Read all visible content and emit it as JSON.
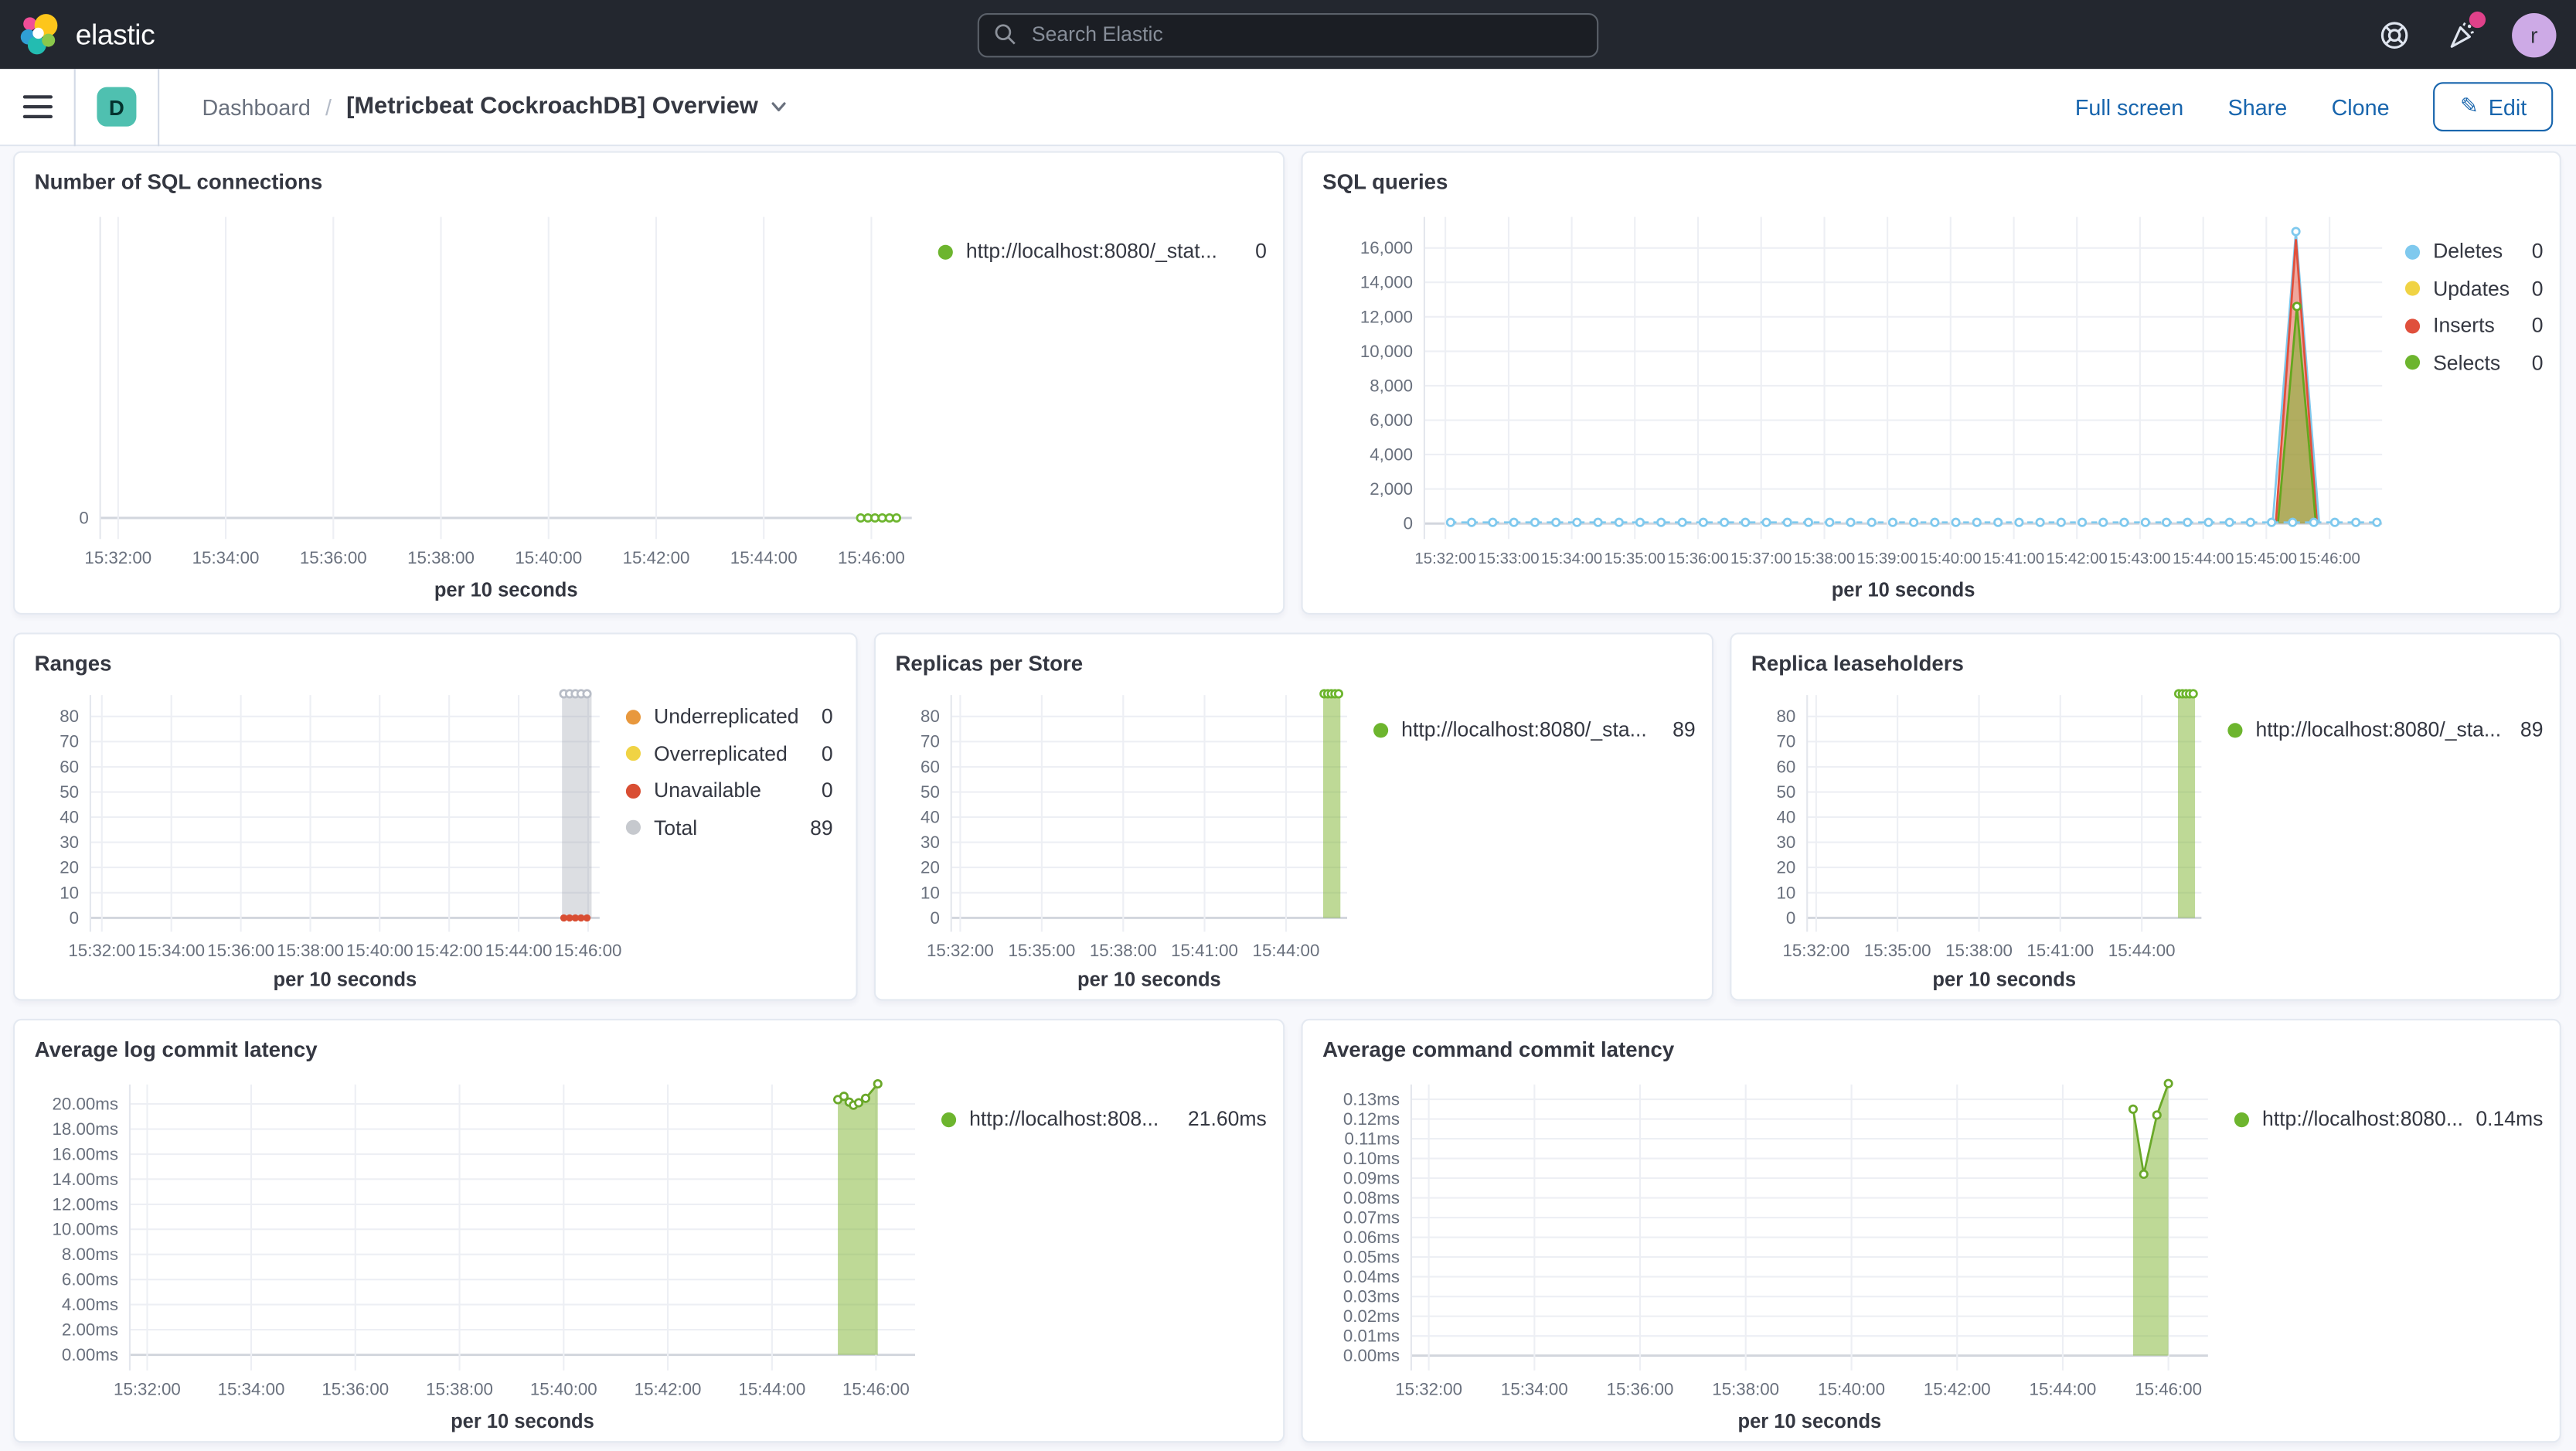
{
  "app": {
    "brand": "elastic"
  },
  "top_bar": {
    "search_placeholder": "Search Elastic",
    "avatar_initial": "r",
    "icons": [
      "help-icon",
      "newsfeed-icon",
      "user-avatar"
    ]
  },
  "toolbar": {
    "space_initial": "D",
    "breadcrumb": "Dashboard",
    "separator": "/",
    "title": "[Metricbeat CockroachDB] Overview",
    "full_screen": "Full screen",
    "share": "Share",
    "clone": "Clone",
    "edit": "Edit"
  },
  "colors": {
    "green": "#6db52e",
    "blue": "#7fc9ee",
    "yellow": "#f0d344",
    "red": "#e0503c",
    "orange": "#e8983d",
    "gray": "#c6c9ce",
    "link_blue": "#1865ad",
    "badge_teal": "#4fc0b0",
    "notification_pink": "#e0418a"
  },
  "panels": [
    {
      "title": "Number of SQL connections",
      "legend": [
        {
          "label": "http://localhost:8080/_stat...",
          "value": "0",
          "color": "#6db52e"
        }
      ]
    },
    {
      "title": "SQL queries",
      "legend": [
        {
          "label": "Deletes",
          "value": "0",
          "color": "#7fc9ee"
        },
        {
          "label": "Updates",
          "value": "0",
          "color": "#f0d344"
        },
        {
          "label": "Inserts",
          "value": "0",
          "color": "#e0503c"
        },
        {
          "label": "Selects",
          "value": "0",
          "color": "#6db52e"
        }
      ]
    },
    {
      "title": "Ranges",
      "legend": [
        {
          "label": "Underreplicated",
          "value": "0",
          "color": "#e8983d"
        },
        {
          "label": "Overreplicated",
          "value": "0",
          "color": "#f0d344"
        },
        {
          "label": "Unavailable",
          "value": "0",
          "color": "#d94e33"
        },
        {
          "label": "Total",
          "value": "89",
          "color": "#c6c9ce"
        }
      ]
    },
    {
      "title": "Replicas per Store",
      "legend": [
        {
          "label": "http://localhost:8080/_sta...",
          "value": "89",
          "color": "#6db52e"
        }
      ]
    },
    {
      "title": "Replica leaseholders",
      "legend": [
        {
          "label": "http://localhost:8080/_sta...",
          "value": "89",
          "color": "#6db52e"
        }
      ]
    },
    {
      "title": "Average log commit latency",
      "legend": [
        {
          "label": "http://localhost:808...",
          "value": "21.60ms",
          "color": "#6db52e"
        }
      ]
    },
    {
      "title": "Average command commit latency",
      "legend": [
        {
          "label": "http://localhost:8080...",
          "value": "0.14ms",
          "color": "#6db52e"
        }
      ]
    }
  ],
  "chart_data": [
    {
      "type": "line",
      "title": "Number of SQL connections",
      "xlabel": "per 10 seconds",
      "x_domain": [
        "15:31:40",
        "15:46:45"
      ],
      "y_domain": [
        -0.07,
        1
      ],
      "x_ticks": [
        "15:32:00",
        "15:34:00",
        "15:36:00",
        "15:38:00",
        "15:40:00",
        "15:42:00",
        "15:44:00",
        "15:46:00"
      ],
      "y_ticks": [
        {
          "v": 0,
          "label": "0"
        }
      ],
      "series": [
        {
          "name": "http://localhost:8080/_stat...",
          "color": "#6db52e",
          "dashed": true,
          "marker": "hollow",
          "repeat": {
            "from": "15:45:48",
            "to": "15:46:28",
            "step_s": 8,
            "value": 0
          }
        }
      ]
    },
    {
      "type": "area",
      "title": "SQL queries",
      "xlabel": "per 10 seconds",
      "x_domain": [
        "15:31:40",
        "15:46:50"
      ],
      "y_domain": [
        -900,
        17800
      ],
      "x_font": 9.6,
      "x_ticks": [
        "15:32:00",
        "15:33:00",
        "15:34:00",
        "15:35:00",
        "15:36:00",
        "15:37:00",
        "15:38:00",
        "15:39:00",
        "15:40:00",
        "15:41:00",
        "15:42:00",
        "15:43:00",
        "15:44:00",
        "15:45:00",
        "15:46:00"
      ],
      "y_ticks": [
        {
          "v": 0,
          "label": "0"
        },
        {
          "v": 2000,
          "label": "2,000"
        },
        {
          "v": 4000,
          "label": "4,000"
        },
        {
          "v": 6000,
          "label": "6,000"
        },
        {
          "v": 8000,
          "label": "8,000"
        },
        {
          "v": 10000,
          "label": "10,000"
        },
        {
          "v": 12000,
          "label": "12,000"
        },
        {
          "v": 14000,
          "label": "14,000"
        },
        {
          "v": 16000,
          "label": "16,000"
        }
      ],
      "series": [
        {
          "name": "Deletes spike",
          "color": "#7fc9ee",
          "marker": "none",
          "points": [
            [
              "15:45:06",
              60
            ],
            [
              "15:45:28",
              16950
            ],
            [
              "15:45:50",
              60
            ]
          ]
        },
        {
          "name": "Inserts",
          "color": "#e0503c",
          "fill": "rgba(224,80,60,0.5)",
          "marker": "none",
          "points": [
            [
              "15:45:09",
              60
            ],
            [
              "15:45:28",
              16500
            ],
            [
              "15:45:48",
              60
            ]
          ]
        },
        {
          "name": "Selects",
          "color": "#64a71e",
          "fill": "rgba(125,179,45,0.55)",
          "marker": "none",
          "points": [
            [
              "15:45:11",
              50
            ],
            [
              "15:45:29",
              12600
            ],
            [
              "15:45:47",
              50
            ]
          ]
        },
        {
          "name": "Selects peak marker",
          "color": "#64a71e",
          "draw_line": false,
          "marker": "hollow",
          "points": [
            [
              "15:45:29",
              12600
            ]
          ]
        },
        {
          "name": "Deletes peak marker",
          "color": "#7fc9ee",
          "draw_line": false,
          "marker": "hollow",
          "points": [
            [
              "15:45:28",
              16950
            ]
          ]
        },
        {
          "name": "Deletes",
          "color": "#7fc9ee",
          "dashed": true,
          "marker": "hollow",
          "repeat": {
            "from": "15:32:05",
            "to": "15:46:45",
            "step_s": 20,
            "value": 60
          }
        }
      ]
    },
    {
      "type": "area",
      "title": "Ranges",
      "xlabel": "per 10 seconds",
      "x_domain": [
        "15:31:40",
        "15:46:20"
      ],
      "y_domain": [
        -5.5,
        88.5
      ],
      "x_ticks": [
        "15:32:00",
        "15:34:00",
        "15:36:00",
        "15:38:00",
        "15:40:00",
        "15:42:00",
        "15:44:00",
        "15:46:00"
      ],
      "y_ticks": [
        {
          "v": 0,
          "label": "0"
        },
        {
          "v": 10,
          "label": "10"
        },
        {
          "v": 20,
          "label": "20"
        },
        {
          "v": 30,
          "label": "30"
        },
        {
          "v": 40,
          "label": "40"
        },
        {
          "v": 50,
          "label": "50"
        },
        {
          "v": 60,
          "label": "60"
        },
        {
          "v": 70,
          "label": "70"
        },
        {
          "v": 80,
          "label": "80"
        }
      ],
      "series": [
        {
          "name": "Total",
          "color": "#caced6",
          "fill": "rgba(150,156,168,0.33)",
          "marker": "none",
          "points": [
            [
              "15:45:15",
              89
            ],
            [
              "15:46:06",
              89
            ]
          ]
        },
        {
          "name": "Total markers",
          "color": "#b8bdc7",
          "draw_line": false,
          "marker": "hollow",
          "repeat": {
            "from": "15:45:18",
            "to": "15:45:58",
            "step_s": 10,
            "value": 89
          }
        },
        {
          "name": "Unavailable",
          "color": "#d94e33",
          "draw_line": false,
          "marker": "solid",
          "repeat": {
            "from": "15:45:18",
            "to": "15:45:58",
            "step_s": 10,
            "value": 0
          }
        }
      ]
    },
    {
      "type": "area",
      "title": "Replicas per Store",
      "xlabel": "per 10 seconds",
      "x_domain": [
        "15:31:40",
        "15:46:15"
      ],
      "y_domain": [
        -5.5,
        88.5
      ],
      "x_ticks": [
        "15:32:00",
        "15:35:00",
        "15:38:00",
        "15:41:00",
        "15:44:00"
      ],
      "y_ticks": [
        {
          "v": 0,
          "label": "0"
        },
        {
          "v": 10,
          "label": "10"
        },
        {
          "v": 20,
          "label": "20"
        },
        {
          "v": 30,
          "label": "30"
        },
        {
          "v": 40,
          "label": "40"
        },
        {
          "v": 50,
          "label": "50"
        },
        {
          "v": 60,
          "label": "60"
        },
        {
          "v": 70,
          "label": "70"
        },
        {
          "v": 80,
          "label": "80"
        }
      ],
      "series": [
        {
          "name": "http://localhost:8080/_sta...",
          "color": "#79b33a",
          "fill": "rgba(125,179,45,0.5)",
          "marker": "none",
          "points": [
            [
              "15:45:22",
              89
            ],
            [
              "15:46:00",
              89
            ]
          ]
        },
        {
          "name": "markers",
          "color": "#6db52e",
          "draw_line": false,
          "marker": "hollow",
          "repeat": {
            "from": "15:45:24",
            "to": "15:45:58",
            "step_s": 8,
            "value": 89
          }
        }
      ]
    },
    {
      "type": "area",
      "title": "Replica leaseholders",
      "xlabel": "per 10 seconds",
      "x_domain": [
        "15:31:40",
        "15:46:12"
      ],
      "y_domain": [
        -5.5,
        88.5
      ],
      "x_ticks": [
        "15:32:00",
        "15:35:00",
        "15:38:00",
        "15:41:00",
        "15:44:00"
      ],
      "y_ticks": [
        {
          "v": 0,
          "label": "0"
        },
        {
          "v": 10,
          "label": "10"
        },
        {
          "v": 20,
          "label": "20"
        },
        {
          "v": 30,
          "label": "30"
        },
        {
          "v": 40,
          "label": "40"
        },
        {
          "v": 50,
          "label": "50"
        },
        {
          "v": 60,
          "label": "60"
        },
        {
          "v": 70,
          "label": "70"
        },
        {
          "v": 80,
          "label": "80"
        }
      ],
      "series": [
        {
          "name": "http://localhost:8080/_sta...",
          "color": "#79b33a",
          "fill": "rgba(125,179,45,0.5)",
          "marker": "none",
          "points": [
            [
              "15:45:20",
              89
            ],
            [
              "15:45:58",
              89
            ]
          ]
        },
        {
          "name": "markers",
          "color": "#6db52e",
          "draw_line": false,
          "marker": "hollow",
          "repeat": {
            "from": "15:45:22",
            "to": "15:45:54",
            "step_s": 8,
            "value": 89
          }
        }
      ]
    },
    {
      "type": "area",
      "title": "Average log commit latency",
      "xlabel": "per 10 seconds",
      "x_domain": [
        "15:31:40",
        "15:46:45"
      ],
      "y_domain": [
        -1.25,
        21.55
      ],
      "x_ticks": [
        "15:32:00",
        "15:34:00",
        "15:36:00",
        "15:38:00",
        "15:40:00",
        "15:42:00",
        "15:44:00",
        "15:46:00"
      ],
      "y_ticks": [
        {
          "v": 0,
          "label": "0.00ms"
        },
        {
          "v": 2,
          "label": "2.00ms"
        },
        {
          "v": 4,
          "label": "4.00ms"
        },
        {
          "v": 6,
          "label": "6.00ms"
        },
        {
          "v": 8,
          "label": "8.00ms"
        },
        {
          "v": 10,
          "label": "10.00ms"
        },
        {
          "v": 12,
          "label": "12.00ms"
        },
        {
          "v": 14,
          "label": "14.00ms"
        },
        {
          "v": 16,
          "label": "16.00ms"
        },
        {
          "v": 18,
          "label": "18.00ms"
        },
        {
          "v": 20,
          "label": "20.00ms"
        }
      ],
      "series": [
        {
          "name": "http://localhost:808...",
          "color": "#6aa829",
          "fill": "rgba(125,179,45,0.5)",
          "marker": "hollow",
          "points": [
            [
              "15:45:16",
              20.35
            ],
            [
              "15:45:23",
              20.6
            ],
            [
              "15:45:29",
              20.15
            ],
            [
              "15:45:34",
              19.9
            ],
            [
              "15:45:40",
              20.1
            ],
            [
              "15:45:48",
              20.45
            ],
            [
              "15:46:02",
              21.6
            ]
          ]
        }
      ]
    },
    {
      "type": "area",
      "title": "Average command commit latency",
      "xlabel": "per 10 seconds",
      "x_domain": [
        "15:31:40",
        "15:46:45"
      ],
      "y_domain": [
        -0.0075,
        0.1375
      ],
      "x_ticks": [
        "15:32:00",
        "15:34:00",
        "15:36:00",
        "15:38:00",
        "15:40:00",
        "15:42:00",
        "15:44:00",
        "15:46:00"
      ],
      "y_ticks": [
        {
          "v": 0,
          "label": "0.00ms"
        },
        {
          "v": 0.01,
          "label": "0.01ms"
        },
        {
          "v": 0.02,
          "label": "0.02ms"
        },
        {
          "v": 0.03,
          "label": "0.03ms"
        },
        {
          "v": 0.04,
          "label": "0.04ms"
        },
        {
          "v": 0.05,
          "label": "0.05ms"
        },
        {
          "v": 0.06,
          "label": "0.06ms"
        },
        {
          "v": 0.07,
          "label": "0.07ms"
        },
        {
          "v": 0.08,
          "label": "0.08ms"
        },
        {
          "v": 0.09,
          "label": "0.09ms"
        },
        {
          "v": 0.1,
          "label": "0.10ms"
        },
        {
          "v": 0.11,
          "label": "0.11ms"
        },
        {
          "v": 0.12,
          "label": "0.12ms"
        },
        {
          "v": 0.13,
          "label": "0.13ms"
        }
      ],
      "series": [
        {
          "name": "http://localhost:8080...",
          "color": "#6aa829",
          "fill": "rgba(125,179,45,0.5)",
          "marker": "hollow",
          "points": [
            [
              "15:45:20",
              0.125
            ],
            [
              "15:45:32",
              0.092
            ],
            [
              "15:45:47",
              0.122
            ],
            [
              "15:46:00",
              0.138
            ]
          ]
        }
      ]
    }
  ]
}
